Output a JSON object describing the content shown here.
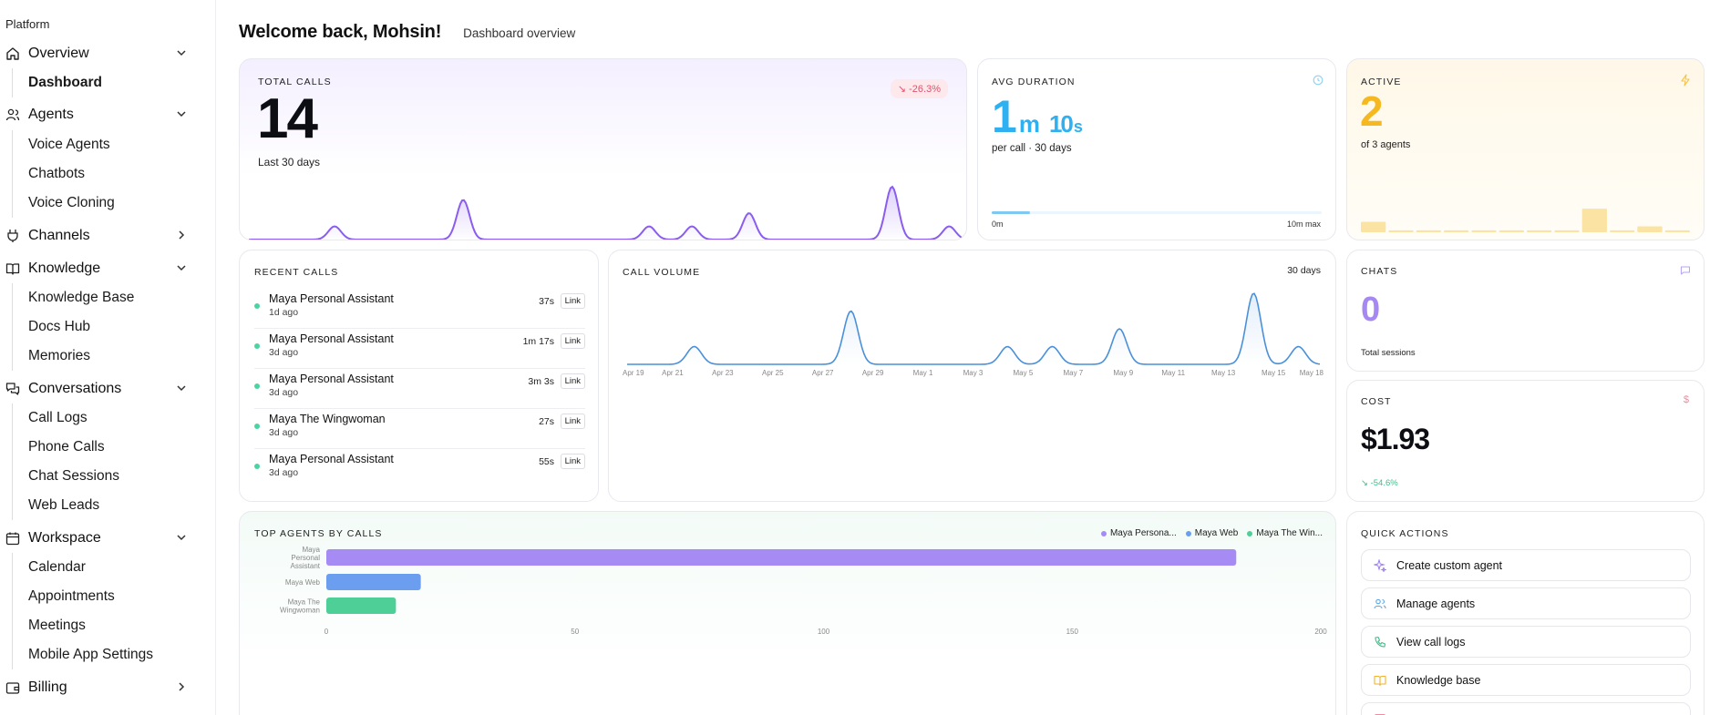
{
  "sidebar": {
    "platform_label": "Platform",
    "groups": [
      {
        "label": "Overview",
        "icon": "home-icon",
        "expanded": true,
        "items": [
          "Dashboard"
        ]
      },
      {
        "label": "Agents",
        "icon": "users-icon",
        "expanded": true,
        "items": [
          "Voice Agents",
          "Chatbots",
          "Voice Cloning"
        ]
      },
      {
        "label": "Channels",
        "icon": "plug-icon",
        "expanded": false,
        "items": []
      },
      {
        "label": "Knowledge",
        "icon": "book-icon",
        "expanded": true,
        "items": [
          "Knowledge Base",
          "Docs Hub",
          "Memories"
        ]
      },
      {
        "label": "Conversations",
        "icon": "chat-icon",
        "expanded": true,
        "items": [
          "Call Logs",
          "Phone Calls",
          "Chat Sessions",
          "Web Leads"
        ]
      },
      {
        "label": "Workspace",
        "icon": "calendar-icon",
        "expanded": true,
        "items": [
          "Calendar",
          "Appointments",
          "Meetings",
          "Mobile App Settings"
        ]
      },
      {
        "label": "Billing",
        "icon": "wallet-icon",
        "expanded": false,
        "items": []
      }
    ],
    "active_item": "Dashboard"
  },
  "header": {
    "title": "Welcome back, Mohsin!",
    "subtitle": "Dashboard overview"
  },
  "total_calls": {
    "label": "TOTAL CALLS",
    "value": "14",
    "change": "-26.3%",
    "period": "Last 30 days",
    "sparkline": [
      0,
      0,
      0,
      0,
      0,
      0,
      1,
      0,
      0,
      0,
      0,
      0,
      0,
      0,
      0,
      3,
      0,
      0,
      0,
      0,
      0,
      0,
      0,
      0,
      0,
      0,
      0,
      0,
      1,
      0,
      0,
      1,
      0,
      0,
      0,
      2,
      0,
      0,
      0,
      0,
      0,
      0,
      0,
      0,
      0,
      4,
      0,
      0,
      0,
      1,
      0
    ]
  },
  "avg_duration": {
    "label": "AVG DURATION",
    "minutes": "1",
    "minutes_unit": "m",
    "seconds": "10",
    "seconds_unit": "s",
    "caption": "per call · 30 days",
    "scale_min": "0m",
    "scale_max": "10m max",
    "progress_fraction": 0.117
  },
  "active": {
    "label": "ACTIVE",
    "value": "2",
    "caption": "of 3 agents",
    "bars": [
      0.32,
      0.06,
      0.06,
      0.06,
      0.06,
      0.06,
      0.06,
      0.06,
      0.72,
      0.06,
      0.18,
      0.06
    ]
  },
  "recent_calls": {
    "label": "RECENT CALLS",
    "link_label": "Link",
    "rows": [
      {
        "name": "Maya Personal Assistant",
        "time": "1d ago",
        "duration": "37s"
      },
      {
        "name": "Maya Personal Assistant",
        "time": "3d ago",
        "duration": "1m 17s"
      },
      {
        "name": "Maya Personal Assistant",
        "time": "3d ago",
        "duration": "3m 3s"
      },
      {
        "name": "Maya The Wingwoman",
        "time": "3d ago",
        "duration": "27s"
      },
      {
        "name": "Maya Personal Assistant",
        "time": "3d ago",
        "duration": "55s"
      }
    ]
  },
  "call_volume": {
    "label": "CALL VOLUME",
    "period": "30 days",
    "x_labels": [
      "Apr 19",
      "Apr 21",
      "Apr 23",
      "Apr 25",
      "Apr 27",
      "Apr 29",
      "May 1",
      "May 3",
      "May 5",
      "May 7",
      "May 9",
      "May 11",
      "May 13",
      "May 15",
      "May 18"
    ]
  },
  "chats": {
    "label": "CHATS",
    "value": "0",
    "caption": "Total sessions"
  },
  "cost": {
    "label": "COST",
    "value": "$1.93",
    "change": "-54.6%",
    "currency_icon": "$"
  },
  "top_agents": {
    "label": "TOP AGENTS BY CALLS",
    "legend": [
      "Maya Persona...",
      "Maya Web",
      "Maya The Win..."
    ],
    "x_ticks": [
      "0",
      "50",
      "100",
      "150",
      "200"
    ]
  },
  "quick_actions": {
    "label": "QUICK ACTIONS",
    "items": [
      {
        "label": "Create custom agent",
        "icon": "sparkle-icon",
        "color": "#9b7bf0"
      },
      {
        "label": "Manage agents",
        "icon": "users-icon",
        "color": "#5aa8e8"
      },
      {
        "label": "View call logs",
        "icon": "phone-icon",
        "color": "#3cc08a"
      },
      {
        "label": "Knowledge base",
        "icon": "book-icon",
        "color": "#f0b233"
      }
    ]
  },
  "chart_data": {
    "type": "bar",
    "orientation": "horizontal",
    "title": "TOP AGENTS BY CALLS",
    "categories": [
      "Maya Personal Assistant",
      "Maya Web",
      "Maya The Wingwoman"
    ],
    "values": [
      183,
      19,
      14
    ],
    "colors": [
      "#a78bf5",
      "#6b9eee",
      "#4fcf98"
    ],
    "xlim": [
      0,
      200
    ]
  },
  "call_volume_data": {
    "type": "line",
    "values": [
      0,
      0,
      0,
      1,
      0,
      0,
      0,
      0,
      0,
      0,
      3,
      0,
      0,
      0,
      0,
      0,
      0,
      1,
      0,
      1,
      0,
      0,
      2,
      0,
      0,
      0,
      0,
      0,
      4,
      0,
      1,
      0
    ]
  },
  "colors": {
    "purple": "#8a5cf0",
    "blue": "#4a90d9",
    "cyan": "#2fb0f0",
    "amber": "#f5b820",
    "green": "#4cd3a0",
    "red": "#e0526d"
  }
}
